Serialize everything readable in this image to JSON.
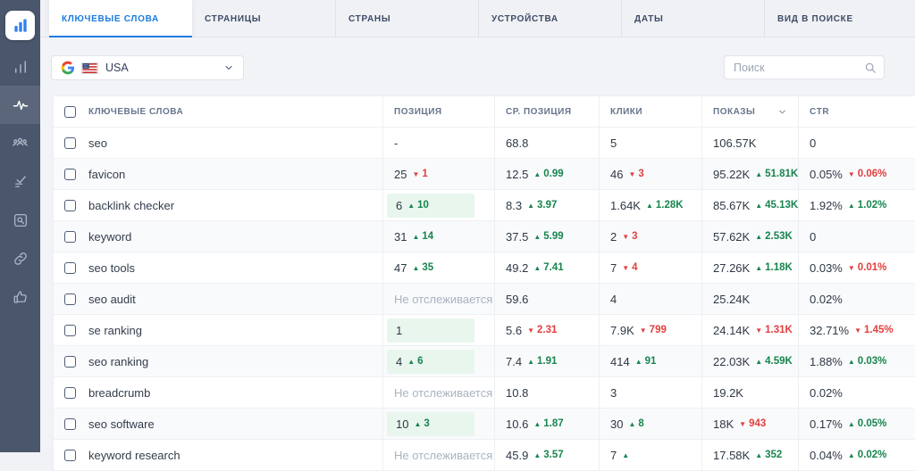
{
  "sidebar": {
    "logo_icon": "bar-chart-logo",
    "items": [
      {
        "icon": "analytics-bars-icon",
        "active": false
      },
      {
        "icon": "pulse-icon",
        "active": true
      },
      {
        "icon": "users-icon",
        "active": false
      },
      {
        "icon": "tasks-check-icon",
        "active": false
      },
      {
        "icon": "page-audit-icon",
        "active": false
      },
      {
        "icon": "backlink-chain-icon",
        "active": false
      },
      {
        "icon": "thumbs-up-icon",
        "active": false
      }
    ]
  },
  "tabs": [
    {
      "label": "КЛЮЧЕВЫЕ СЛОВА",
      "active": true
    },
    {
      "label": "СТРАНИЦЫ",
      "active": false
    },
    {
      "label": "СТРАНЫ",
      "active": false
    },
    {
      "label": "УСТРОЙСТВА",
      "active": false
    },
    {
      "label": "ДАТЫ",
      "active": false
    },
    {
      "label": "ВИД В ПОИСКЕ",
      "active": false
    }
  ],
  "filters": {
    "engine_location": {
      "label": "USA",
      "icons": [
        "google-icon",
        "us-flag-icon"
      ]
    },
    "search": {
      "placeholder": "Поиск"
    }
  },
  "table": {
    "not_tracked_label": "Не отслеживается",
    "columns": [
      {
        "key": "keyword",
        "label": "КЛЮЧЕВЫЕ СЛОВА"
      },
      {
        "key": "position",
        "label": "ПОЗИЦИЯ"
      },
      {
        "key": "avg_position",
        "label": "СР. ПОЗИЦИЯ"
      },
      {
        "key": "clicks",
        "label": "КЛИКИ"
      },
      {
        "key": "impressions",
        "label": "ПОКАЗЫ",
        "sorted": "desc"
      },
      {
        "key": "ctr",
        "label": "CTR"
      }
    ],
    "rows": [
      {
        "keyword": "seo",
        "position": {
          "v": "-"
        },
        "avg_position": {
          "v": "68.8"
        },
        "clicks": {
          "v": "5"
        },
        "impressions": {
          "v": "106.57K"
        },
        "ctr": {
          "v": "0"
        }
      },
      {
        "keyword": "favicon",
        "position": {
          "v": "25",
          "dir": "down",
          "chg": "1"
        },
        "avg_position": {
          "v": "12.5",
          "dir": "up",
          "chg": "0.99"
        },
        "clicks": {
          "v": "46",
          "dir": "down",
          "chg": "3"
        },
        "impressions": {
          "v": "95.22K",
          "dir": "up",
          "chg": "51.81K"
        },
        "ctr": {
          "v": "0.05%",
          "dir": "down",
          "chg": "0.06%"
        }
      },
      {
        "keyword": "backlink checker",
        "position": {
          "v": "6",
          "dir": "up",
          "chg": "10",
          "hl": true
        },
        "avg_position": {
          "v": "8.3",
          "dir": "up",
          "chg": "3.97"
        },
        "clicks": {
          "v": "1.64K",
          "dir": "up",
          "chg": "1.28K"
        },
        "impressions": {
          "v": "85.67K",
          "dir": "up",
          "chg": "45.13K"
        },
        "ctr": {
          "v": "1.92%",
          "dir": "up",
          "chg": "1.02%"
        }
      },
      {
        "keyword": "keyword",
        "position": {
          "v": "31",
          "dir": "up",
          "chg": "14"
        },
        "avg_position": {
          "v": "37.5",
          "dir": "up",
          "chg": "5.99"
        },
        "clicks": {
          "v": "2",
          "dir": "down",
          "chg": "3"
        },
        "impressions": {
          "v": "57.62K",
          "dir": "up",
          "chg": "2.53K"
        },
        "ctr": {
          "v": "0"
        }
      },
      {
        "keyword": "seo tools",
        "position": {
          "v": "47",
          "dir": "up",
          "chg": "35"
        },
        "avg_position": {
          "v": "49.2",
          "dir": "up",
          "chg": "7.41"
        },
        "clicks": {
          "v": "7",
          "dir": "down",
          "chg": "4"
        },
        "impressions": {
          "v": "27.26K",
          "dir": "up",
          "chg": "1.18K"
        },
        "ctr": {
          "v": "0.03%",
          "dir": "down",
          "chg": "0.01%"
        }
      },
      {
        "keyword": "seo audit",
        "position": {
          "untracked": true
        },
        "avg_position": {
          "v": "59.6"
        },
        "clicks": {
          "v": "4"
        },
        "impressions": {
          "v": "25.24K"
        },
        "ctr": {
          "v": "0.02%"
        }
      },
      {
        "keyword": "se ranking",
        "position": {
          "v": "1",
          "hl": true
        },
        "avg_position": {
          "v": "5.6",
          "dir": "down",
          "chg": "2.31"
        },
        "clicks": {
          "v": "7.9K",
          "dir": "down",
          "chg": "799"
        },
        "impressions": {
          "v": "24.14K",
          "dir": "down",
          "chg": "1.31K"
        },
        "ctr": {
          "v": "32.71%",
          "dir": "down",
          "chg": "1.45%"
        }
      },
      {
        "keyword": "seo ranking",
        "position": {
          "v": "4",
          "dir": "up",
          "chg": "6",
          "hl": true
        },
        "avg_position": {
          "v": "7.4",
          "dir": "up",
          "chg": "1.91"
        },
        "clicks": {
          "v": "414",
          "dir": "up",
          "chg": "91"
        },
        "impressions": {
          "v": "22.03K",
          "dir": "up",
          "chg": "4.59K"
        },
        "ctr": {
          "v": "1.88%",
          "dir": "up",
          "chg": "0.03%"
        }
      },
      {
        "keyword": "breadcrumb",
        "position": {
          "untracked": true
        },
        "avg_position": {
          "v": "10.8"
        },
        "clicks": {
          "v": "3"
        },
        "impressions": {
          "v": "19.2K"
        },
        "ctr": {
          "v": "0.02%"
        }
      },
      {
        "keyword": "seo software",
        "position": {
          "v": "10",
          "dir": "up",
          "chg": "3",
          "hl": true
        },
        "avg_position": {
          "v": "10.6",
          "dir": "up",
          "chg": "1.87"
        },
        "clicks": {
          "v": "30",
          "dir": "up",
          "chg": "8"
        },
        "impressions": {
          "v": "18K",
          "dir": "down",
          "chg": "943"
        },
        "ctr": {
          "v": "0.17%",
          "dir": "up",
          "chg": "0.05%"
        }
      },
      {
        "keyword": "keyword research",
        "position": {
          "untracked": true
        },
        "avg_position": {
          "v": "45.9",
          "dir": "up",
          "chg": "3.57"
        },
        "clicks": {
          "v": "7",
          "dir": "up",
          "chg": ""
        },
        "impressions": {
          "v": "17.58K",
          "dir": "up",
          "chg": "352"
        },
        "ctr": {
          "v": "0.04%",
          "dir": "up",
          "chg": "0.02%"
        }
      }
    ]
  },
  "colors": {
    "accent_blue": "#1b7ce0",
    "positive_green": "#18854e",
    "negative_red": "#e33e3e",
    "highlight_green_bg": "#e8f6ee",
    "sidebar_bg": "#4a566c"
  }
}
